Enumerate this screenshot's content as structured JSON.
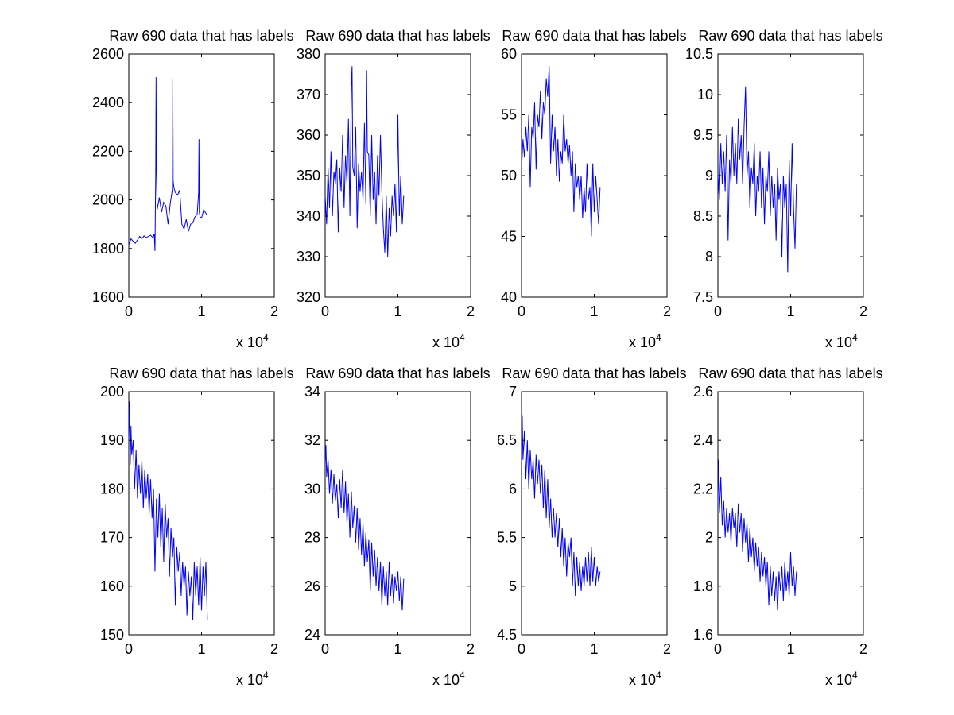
{
  "figure": {
    "background": "#ffffff",
    "line_color": "#0000ff",
    "axis_color": "#000000"
  },
  "chart_data": [
    {
      "type": "line",
      "title": "Raw 690 data that has labels",
      "xlim": [
        0,
        20000
      ],
      "ylim": [
        1600,
        2600
      ],
      "xticks": [
        "0",
        "1",
        "2"
      ],
      "yticks": [
        "1600",
        "1800",
        "2000",
        "2200",
        "2400",
        "2600"
      ],
      "x_exponent_label": "x 10",
      "x_exponent": "4",
      "grid": false,
      "series": [
        {
          "x": [
            0,
            300,
            600,
            900,
            1200,
            1500,
            1800,
            2100,
            2400,
            2700,
            3000,
            3300,
            3500,
            3600,
            3700,
            3750,
            3800,
            3900,
            4000,
            4200,
            4500,
            4800,
            5100,
            5400,
            5700,
            6000,
            6050,
            6100,
            6200,
            6400,
            6700,
            7000,
            7300,
            7600,
            7900,
            8200,
            8500,
            8800,
            9100,
            9400,
            9600,
            9650,
            9700,
            9800,
            10000,
            10300,
            10600,
            10800
          ],
          "y": [
            1815,
            1840,
            1830,
            1822,
            1835,
            1850,
            1840,
            1852,
            1845,
            1850,
            1855,
            1845,
            1860,
            1790,
            2100,
            2505,
            2140,
            1960,
            1975,
            2010,
            1950,
            1990,
            1975,
            1900,
            1985,
            2045,
            2495,
            2080,
            2050,
            2030,
            2020,
            2040,
            1900,
            1880,
            1920,
            1870,
            1900,
            1905,
            1930,
            1940,
            2030,
            2250,
            1950,
            1930,
            1925,
            1960,
            1945,
            1935
          ]
        }
      ]
    },
    {
      "type": "line",
      "title": "Raw 690 data that has labels",
      "xlim": [
        0,
        20000
      ],
      "ylim": [
        320,
        380
      ],
      "xticks": [
        "0",
        "1",
        "2"
      ],
      "yticks": [
        "320",
        "330",
        "340",
        "350",
        "360",
        "370",
        "380"
      ],
      "x_exponent_label": "x 10",
      "x_exponent": "4",
      "grid": false,
      "series": [
        {
          "x": [
            0,
            200,
            400,
            600,
            800,
            1000,
            1200,
            1400,
            1600,
            1800,
            2000,
            2200,
            2400,
            2600,
            2800,
            3000,
            3200,
            3400,
            3600,
            3700,
            3800,
            4000,
            4200,
            4400,
            4600,
            4800,
            5000,
            5200,
            5400,
            5600,
            5700,
            5800,
            6000,
            6200,
            6400,
            6600,
            6800,
            7000,
            7200,
            7400,
            7600,
            7800,
            8000,
            8200,
            8400,
            8600,
            8800,
            9000,
            9200,
            9400,
            9600,
            9800,
            10000,
            10200,
            10400,
            10600,
            10800
          ],
          "y": [
            345,
            338,
            352,
            342,
            356,
            340,
            351,
            348,
            354,
            336,
            352,
            346,
            360,
            342,
            355,
            348,
            364,
            340,
            372,
            377,
            352,
            350,
            362,
            337,
            353,
            346,
            351,
            344,
            363,
            343,
            376,
            356,
            355,
            340,
            360,
            344,
            351,
            338,
            355,
            345,
            360,
            346,
            337,
            331,
            345,
            330,
            342,
            335,
            345,
            340,
            348,
            336,
            365,
            340,
            350,
            338,
            345
          ]
        }
      ]
    },
    {
      "type": "line",
      "title": "Raw 690 data that has labels",
      "xlim": [
        0,
        20000
      ],
      "ylim": [
        40,
        60
      ],
      "xticks": [
        "0",
        "1",
        "2"
      ],
      "yticks": [
        "40",
        "45",
        "50",
        "55",
        "60"
      ],
      "x_exponent_label": "x 10",
      "x_exponent": "4",
      "grid": false,
      "series": [
        {
          "x": [
            0,
            200,
            400,
            600,
            800,
            1000,
            1200,
            1400,
            1600,
            1800,
            2000,
            2200,
            2400,
            2600,
            2800,
            3000,
            3200,
            3400,
            3600,
            3800,
            4000,
            4200,
            4400,
            4600,
            4800,
            5000,
            5200,
            5400,
            5600,
            5800,
            6000,
            6200,
            6400,
            6600,
            6800,
            7000,
            7200,
            7400,
            7600,
            7800,
            8000,
            8200,
            8400,
            8600,
            8800,
            9000,
            9200,
            9400,
            9600,
            9800,
            10000,
            10200,
            10400,
            10600,
            10800
          ],
          "y": [
            50.5,
            53,
            51.5,
            54,
            52,
            55,
            49,
            54,
            53,
            56,
            50.5,
            55,
            54,
            57,
            53,
            56,
            55,
            58,
            56.5,
            59,
            51,
            55,
            52,
            54,
            50,
            53,
            49.5,
            52,
            51,
            55,
            52,
            53,
            51,
            52.5,
            50,
            52,
            47,
            51,
            49,
            50,
            48,
            50,
            46.5,
            49,
            47,
            51,
            48,
            49,
            45,
            51,
            47,
            50,
            48,
            46,
            49
          ]
        }
      ]
    },
    {
      "type": "line",
      "title": "Raw 690 data that has labels",
      "xlim": [
        0,
        20000
      ],
      "ylim": [
        7.5,
        10.5
      ],
      "xticks": [
        "0",
        "1",
        "2"
      ],
      "yticks": [
        "7.5",
        "8",
        "8.5",
        "9",
        "9.5",
        "10",
        "10.5"
      ],
      "x_exponent_label": "x 10",
      "x_exponent": "4",
      "grid": false,
      "series": [
        {
          "x": [
            0,
            200,
            400,
            600,
            800,
            1000,
            1200,
            1400,
            1600,
            1800,
            2000,
            2200,
            2400,
            2600,
            2800,
            3000,
            3200,
            3400,
            3600,
            3800,
            4000,
            4200,
            4400,
            4600,
            4800,
            5000,
            5200,
            5400,
            5600,
            5800,
            6000,
            6200,
            6400,
            6600,
            6800,
            7000,
            7200,
            7400,
            7600,
            7800,
            8000,
            8200,
            8400,
            8600,
            8800,
            9000,
            9200,
            9400,
            9600,
            9800,
            10000,
            10200,
            10400,
            10600,
            10800
          ],
          "y": [
            9.0,
            8.7,
            9.4,
            8.9,
            9.3,
            8.8,
            9.5,
            8.2,
            9.2,
            8.9,
            9.6,
            9.0,
            9.4,
            8.9,
            9.7,
            9.2,
            9.5,
            8.9,
            9.6,
            10.1,
            9.0,
            9.3,
            8.6,
            9.1,
            8.9,
            9.4,
            8.5,
            9.0,
            8.8,
            9.3,
            8.6,
            9.1,
            8.4,
            9.0,
            8.8,
            9.3,
            8.5,
            9.0,
            8.6,
            8.9,
            8.2,
            9.1,
            8.7,
            8.9,
            8.0,
            9.0,
            8.6,
            8.9,
            7.8,
            9.2,
            8.5,
            9.4,
            8.6,
            8.1,
            8.9
          ]
        }
      ]
    },
    {
      "type": "line",
      "title": "Raw 690 data that has labels",
      "xlim": [
        0,
        20000
      ],
      "ylim": [
        150,
        200
      ],
      "xticks": [
        "0",
        "1",
        "2"
      ],
      "yticks": [
        "150",
        "160",
        "170",
        "180",
        "190",
        "200"
      ],
      "x_exponent_label": "x 10",
      "x_exponent": "4",
      "grid": false,
      "series": [
        {
          "x": [
            0,
            100,
            200,
            300,
            400,
            600,
            800,
            1000,
            1200,
            1400,
            1600,
            1800,
            2000,
            2200,
            2400,
            2600,
            2800,
            3000,
            3200,
            3400,
            3600,
            3800,
            4000,
            4200,
            4400,
            4600,
            4800,
            5000,
            5200,
            5400,
            5600,
            5800,
            6000,
            6200,
            6400,
            6600,
            6800,
            7000,
            7200,
            7400,
            7600,
            7800,
            8000,
            8200,
            8400,
            8600,
            8800,
            9000,
            9200,
            9400,
            9600,
            9800,
            10000,
            10200,
            10400,
            10600,
            10800
          ],
          "y": [
            190,
            198,
            185,
            193,
            187,
            190,
            180,
            188,
            178,
            185,
            179,
            186,
            176,
            184,
            178,
            183,
            175,
            182,
            174,
            180,
            163,
            178,
            170,
            179,
            168,
            176,
            165,
            177,
            170,
            174,
            162,
            172,
            166,
            170,
            156,
            168,
            163,
            167,
            158,
            165,
            160,
            164,
            154,
            163,
            158,
            162,
            153,
            165,
            158,
            164,
            156,
            166,
            155,
            164,
            158,
            165,
            153
          ]
        }
      ]
    },
    {
      "type": "line",
      "title": "Raw 690 data that has labels",
      "xlim": [
        0,
        20000
      ],
      "ylim": [
        24,
        34
      ],
      "xticks": [
        "0",
        "1",
        "2"
      ],
      "yticks": [
        "24",
        "26",
        "28",
        "30",
        "32",
        "34"
      ],
      "x_exponent_label": "x 10",
      "x_exponent": "4",
      "grid": false,
      "series": [
        {
          "x": [
            0,
            100,
            200,
            400,
            600,
            800,
            1000,
            1200,
            1400,
            1600,
            1800,
            2000,
            2200,
            2400,
            2600,
            2800,
            3000,
            3200,
            3400,
            3600,
            3800,
            4000,
            4200,
            4400,
            4600,
            4800,
            5000,
            5200,
            5400,
            5600,
            5800,
            6000,
            6200,
            6400,
            6600,
            6800,
            7000,
            7200,
            7400,
            7600,
            7800,
            8000,
            8200,
            8400,
            8600,
            8800,
            9000,
            9200,
            9400,
            9600,
            9800,
            10000,
            10200,
            10400,
            10600,
            10800
          ],
          "y": [
            31,
            31.8,
            30.5,
            31.2,
            29.8,
            30.8,
            29.4,
            30.6,
            29.5,
            30.2,
            28.8,
            30.4,
            29.2,
            30.8,
            29.0,
            30.3,
            28.6,
            29.8,
            28.0,
            29.9,
            28.4,
            29.3,
            27.8,
            29.2,
            27.5,
            28.8,
            27.3,
            28.6,
            26.8,
            28.2,
            27.0,
            27.9,
            25.8,
            27.8,
            26.4,
            27.5,
            26.0,
            27.2,
            25.8,
            27.0,
            25.2,
            26.8,
            25.6,
            26.6,
            25.2,
            27.0,
            25.6,
            26.5,
            25.3,
            26.4,
            25.8,
            26.6,
            25.4,
            26.4,
            25.0,
            26.3
          ]
        }
      ]
    },
    {
      "type": "line",
      "title": "Raw 690 data that has labels",
      "xlim": [
        0,
        20000
      ],
      "ylim": [
        4.5,
        7
      ],
      "xticks": [
        "0",
        "1",
        "2"
      ],
      "yticks": [
        "4.5",
        "5",
        "5.5",
        "6",
        "6.5",
        "7"
      ],
      "x_exponent_label": "x 10",
      "x_exponent": "4",
      "grid": false,
      "series": [
        {
          "x": [
            0,
            100,
            200,
            400,
            600,
            800,
            1000,
            1200,
            1400,
            1600,
            1800,
            2000,
            2200,
            2400,
            2600,
            2800,
            3000,
            3200,
            3400,
            3600,
            3800,
            4000,
            4200,
            4400,
            4600,
            4800,
            5000,
            5200,
            5400,
            5600,
            5800,
            6000,
            6200,
            6400,
            6600,
            6800,
            7000,
            7200,
            7400,
            7600,
            7800,
            8000,
            8200,
            8400,
            8600,
            8800,
            9000,
            9200,
            9400,
            9600,
            9800,
            10000,
            10200,
            10400,
            10600,
            10800
          ],
          "y": [
            6.4,
            6.75,
            6.3,
            6.6,
            6.1,
            6.5,
            6.0,
            6.4,
            6.1,
            6.3,
            5.9,
            6.35,
            6.05,
            6.3,
            5.95,
            6.25,
            5.8,
            6.2,
            5.7,
            6.1,
            5.6,
            5.9,
            5.5,
            5.8,
            5.5,
            5.75,
            5.4,
            5.7,
            5.3,
            5.6,
            5.2,
            5.5,
            5.1,
            5.45,
            5.3,
            5.5,
            5.0,
            5.35,
            4.9,
            5.3,
            5.0,
            5.25,
            4.95,
            5.2,
            5.0,
            5.3,
            5.05,
            5.35,
            5.0,
            5.4,
            5.05,
            5.3,
            5.0,
            5.2,
            5.05,
            5.15
          ]
        }
      ]
    },
    {
      "type": "line",
      "title": "Raw 690 data that has labels",
      "xlim": [
        0,
        20000
      ],
      "ylim": [
        1.6,
        2.6
      ],
      "xticks": [
        "0",
        "1",
        "2"
      ],
      "yticks": [
        "1.6",
        "1.8",
        "2",
        "2.2",
        "2.4",
        "2.6"
      ],
      "x_exponent_label": "x 10",
      "x_exponent": "4",
      "grid": false,
      "series": [
        {
          "x": [
            0,
            100,
            200,
            400,
            600,
            800,
            1000,
            1200,
            1400,
            1600,
            1800,
            2000,
            2200,
            2400,
            2600,
            2800,
            3000,
            3200,
            3400,
            3600,
            3800,
            4000,
            4200,
            4400,
            4600,
            4800,
            5000,
            5200,
            5400,
            5600,
            5800,
            6000,
            6200,
            6400,
            6600,
            6800,
            7000,
            7200,
            7400,
            7600,
            7800,
            8000,
            8200,
            8400,
            8600,
            8800,
            9000,
            9200,
            9400,
            9600,
            9800,
            10000,
            10200,
            10400,
            10600,
            10800
          ],
          "y": [
            2.15,
            2.32,
            2.1,
            2.25,
            2.05,
            2.15,
            2.0,
            2.12,
            2.02,
            2.1,
            1.98,
            2.12,
            2.04,
            2.1,
            1.96,
            2.14,
            2.02,
            2.1,
            1.94,
            2.08,
            1.98,
            2.06,
            1.9,
            2.04,
            1.92,
            2.0,
            1.86,
            1.98,
            1.88,
            1.96,
            1.82,
            1.94,
            1.84,
            1.92,
            1.8,
            1.9,
            1.72,
            1.88,
            1.76,
            1.86,
            1.74,
            1.84,
            1.7,
            1.86,
            1.78,
            1.88,
            1.74,
            1.9,
            1.78,
            1.86,
            1.76,
            1.94,
            1.8,
            1.88,
            1.76,
            1.86
          ]
        }
      ]
    }
  ]
}
